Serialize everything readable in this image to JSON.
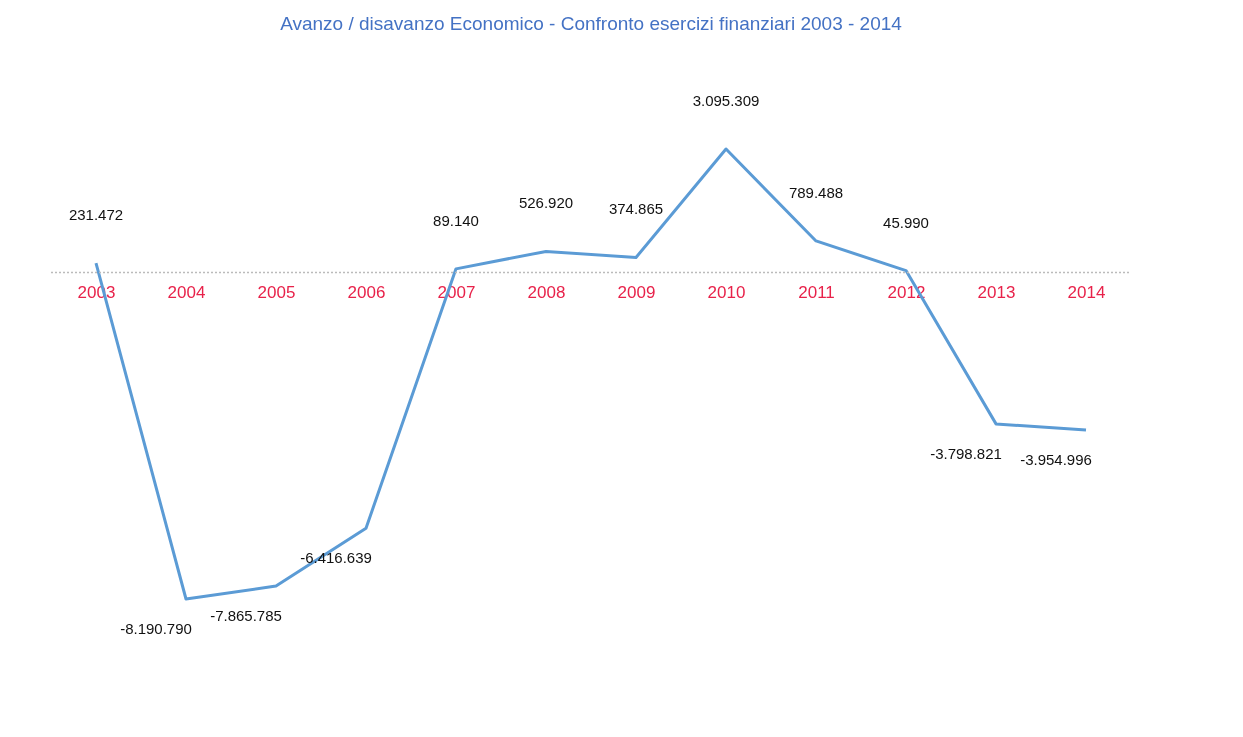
{
  "chart_data": {
    "type": "line",
    "title": "Avanzo / disavanzo Economico - Confronto esercizi finanziari 2003 - 2014",
    "categories": [
      "2003",
      "2004",
      "2005",
      "2006",
      "2007",
      "2008",
      "2009",
      "2010",
      "2011",
      "2012",
      "2013",
      "2014"
    ],
    "series": [
      {
        "color": "#5b9bd5",
        "values": [
          231472,
          -8190790,
          -7865785,
          -6416639,
          89140,
          526920,
          374865,
          3095309,
          789488,
          45990,
          -3798821,
          -3954996
        ],
        "value_labels": [
          "231.472",
          "-8.190.790",
          "-7.865.785",
          "-6.416.639",
          "89.140",
          "526.920",
          "374.865",
          "3.095.309",
          "789.488",
          "45.990",
          "-3.798.821",
          "-3.954.996"
        ]
      }
    ],
    "ref_lines": [
      {
        "axis": "y",
        "value": 0,
        "color": "#bbbbbb",
        "line_style": "dotted"
      }
    ],
    "grid": false,
    "marker": "none",
    "line_style": "solid"
  }
}
